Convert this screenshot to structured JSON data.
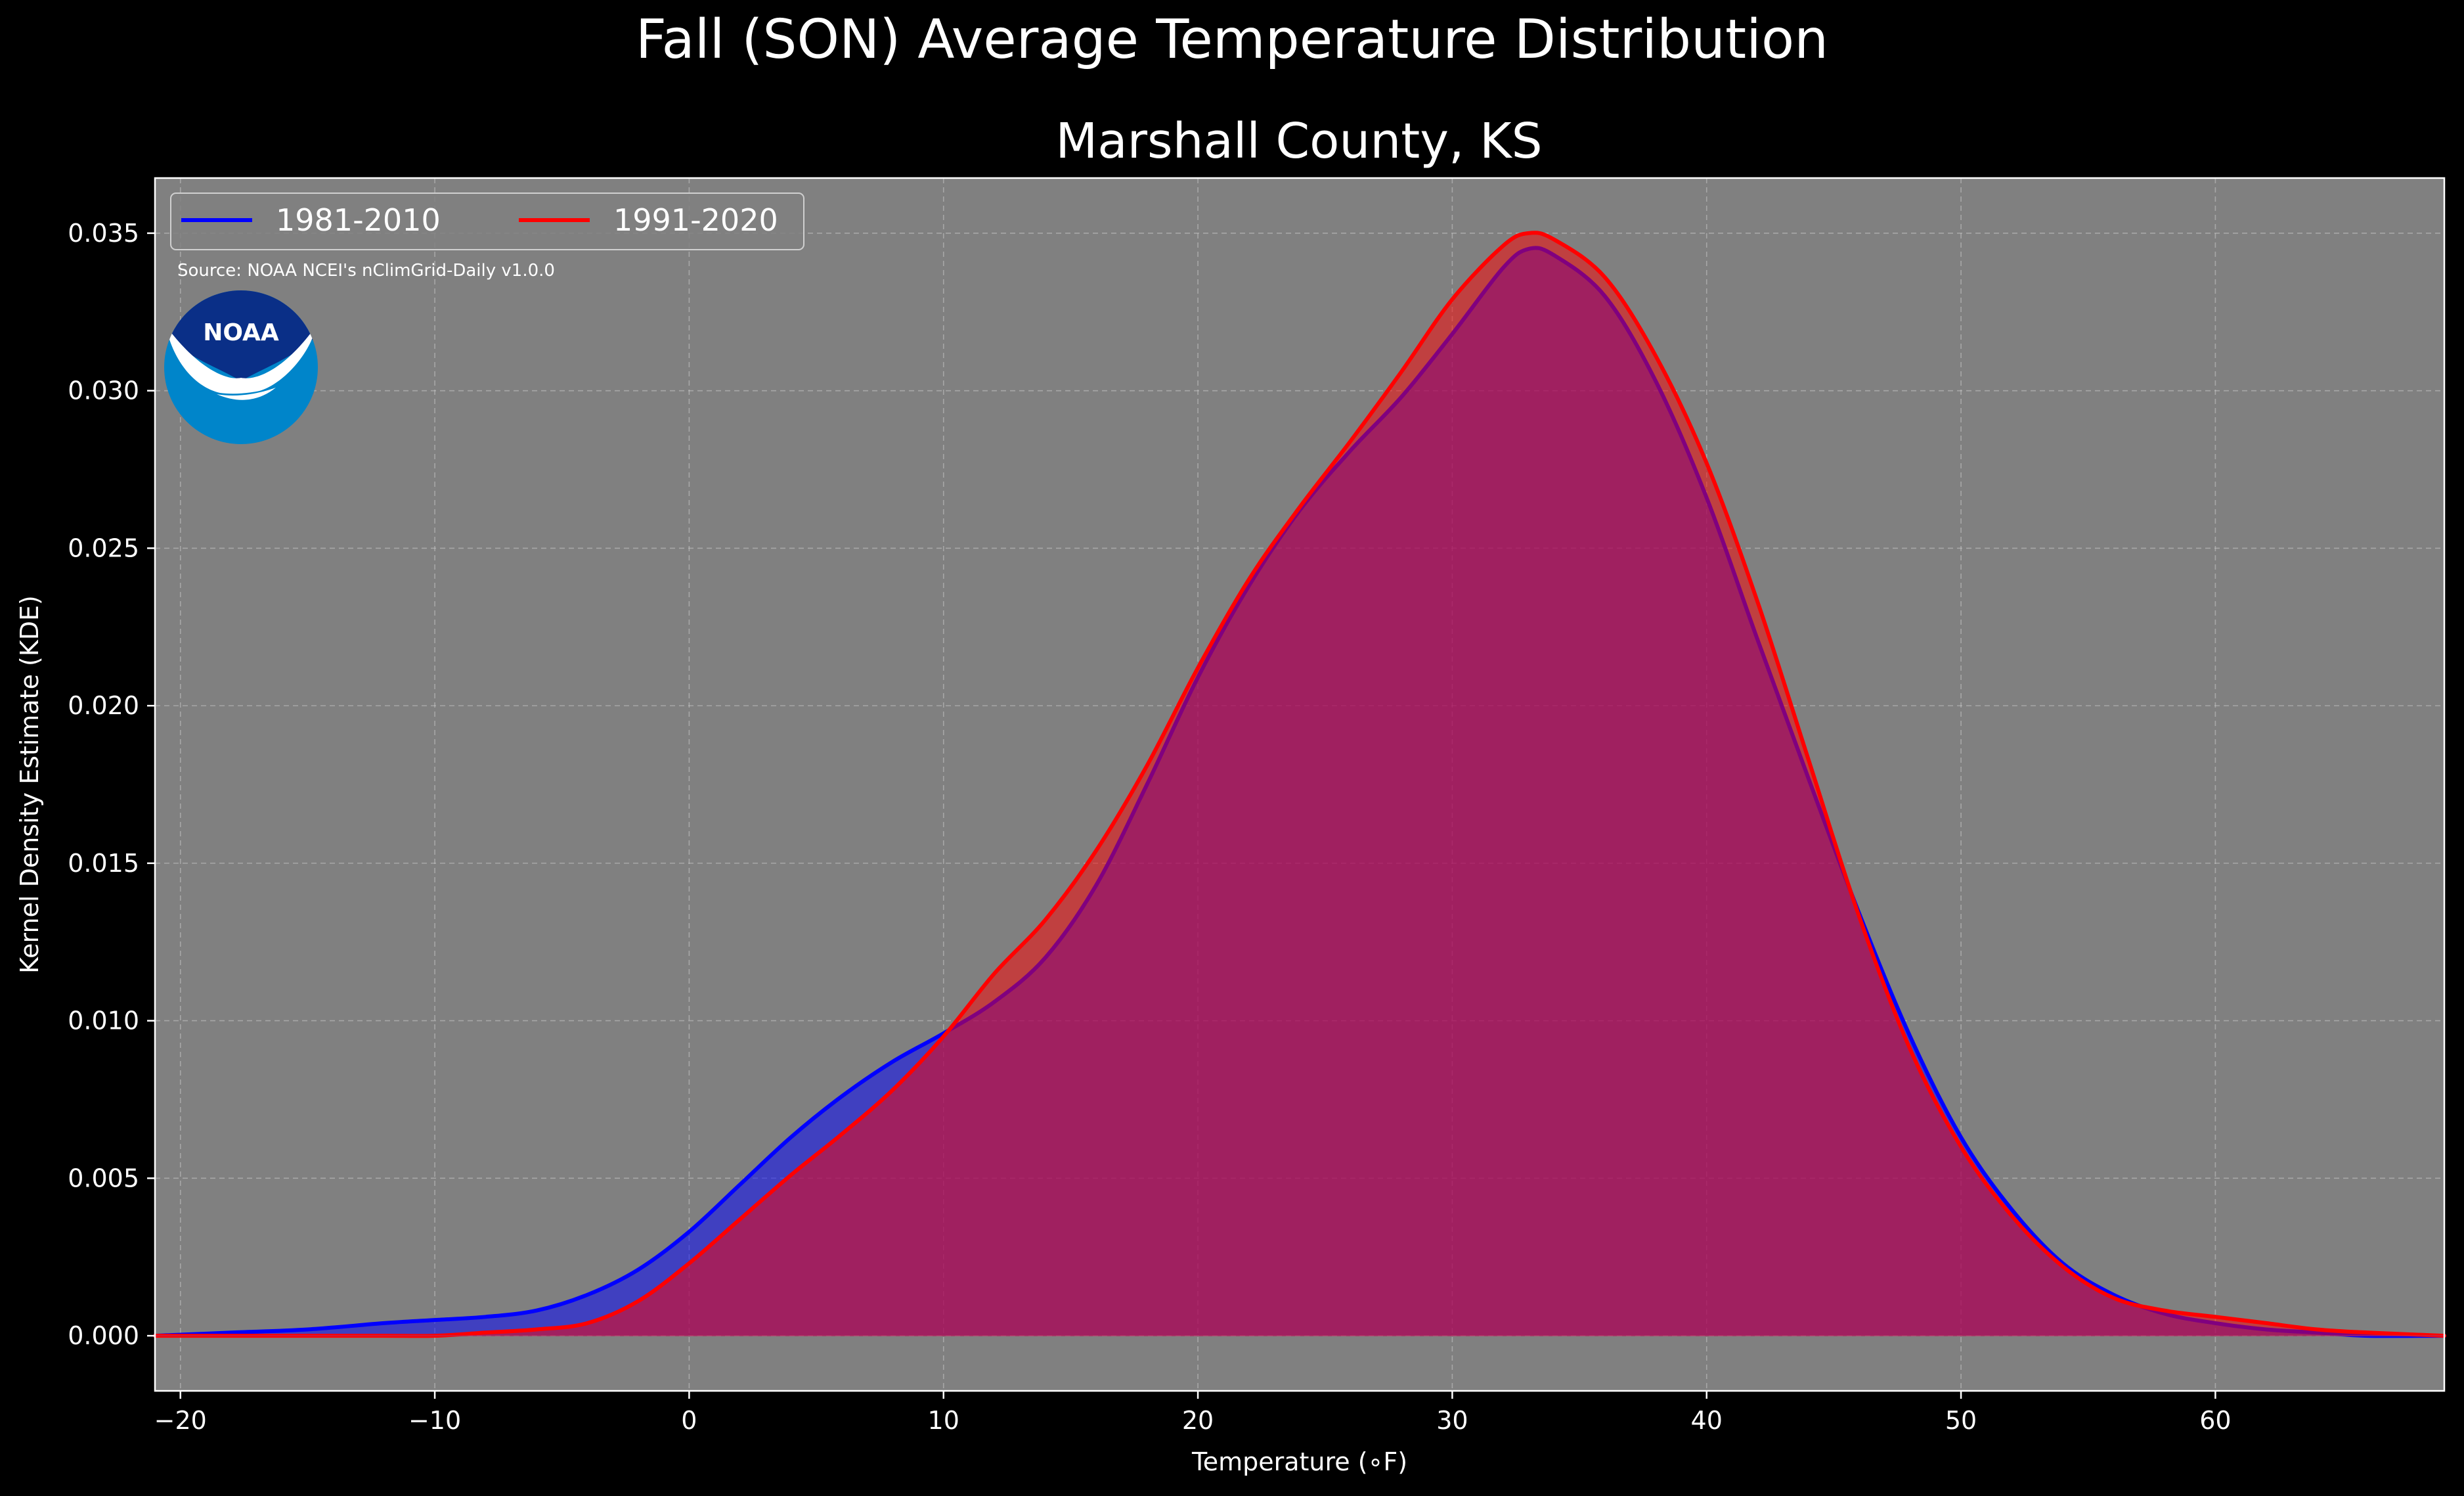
{
  "chart_data": {
    "type": "area",
    "title": "Fall (SON) Average Temperature Distribution",
    "subtitle": "Marshall County, KS",
    "xlabel": "Temperature (∘F)",
    "ylabel": "Kernel Density Estimate (KDE)",
    "xlim": [
      -21,
      69
    ],
    "ylim": [
      -0.00175,
      0.03675
    ],
    "xticks": [
      -20,
      -10,
      0,
      10,
      20,
      30,
      40,
      50,
      60
    ],
    "xtick_labels": [
      "−20",
      "−10",
      "0",
      "10",
      "20",
      "30",
      "40",
      "50",
      "60"
    ],
    "yticks": [
      0.0,
      0.005,
      0.01,
      0.015,
      0.02,
      0.025,
      0.03,
      0.035
    ],
    "ytick_labels": [
      "0.000",
      "0.005",
      "0.010",
      "0.015",
      "0.020",
      "0.025",
      "0.030",
      "0.035"
    ],
    "grid": true,
    "legend_position": "top-left",
    "source_text": "Source: NOAA NCEI's nClimGrid-Daily v1.0.0",
    "logo_text": "NOAA",
    "background_color": "#000000",
    "plot_background_color": "#808080",
    "series": [
      {
        "name": "1981-2010",
        "color": "#0000ff",
        "fill": "#0000ff",
        "x": [
          -21,
          -18,
          -15,
          -12,
          -10,
          -8,
          -6,
          -4,
          -2,
          0,
          2,
          4,
          6,
          8,
          10,
          12,
          14,
          16,
          18,
          20,
          22,
          24,
          26,
          28,
          30,
          32,
          33,
          34,
          36,
          38,
          40,
          42,
          44,
          46,
          48,
          50,
          52,
          54,
          56,
          58,
          60,
          62,
          64,
          66,
          69
        ],
        "values": [
          0.0,
          0.0001,
          0.0002,
          0.0004,
          0.0005,
          0.0006,
          0.0008,
          0.0013,
          0.0021,
          0.0033,
          0.0048,
          0.0063,
          0.0076,
          0.0087,
          0.0096,
          0.0106,
          0.012,
          0.0143,
          0.0175,
          0.0209,
          0.0238,
          0.0262,
          0.0281,
          0.0298,
          0.0318,
          0.0339,
          0.0345,
          0.0343,
          0.033,
          0.0303,
          0.0266,
          0.0221,
          0.0177,
          0.0134,
          0.0095,
          0.0063,
          0.004,
          0.0023,
          0.0013,
          0.0007,
          0.0004,
          0.0002,
          0.0001,
          0.0,
          0.0
        ]
      },
      {
        "name": "1991-2020",
        "color": "#ff0000",
        "fill": "#ff0000",
        "x": [
          -21,
          -18,
          -15,
          -12,
          -10,
          -8,
          -6,
          -4,
          -2,
          0,
          2,
          4,
          6,
          8,
          10,
          12,
          14,
          16,
          18,
          20,
          22,
          24,
          26,
          28,
          30,
          32,
          33,
          34,
          36,
          38,
          40,
          42,
          44,
          46,
          48,
          50,
          52,
          54,
          56,
          58,
          60,
          62,
          64,
          66,
          69
        ],
        "values": [
          0.0,
          0.0,
          0.0,
          0.0,
          0.0,
          0.0001,
          0.0002,
          0.0004,
          0.0011,
          0.0023,
          0.0037,
          0.0051,
          0.0064,
          0.0078,
          0.0095,
          0.0115,
          0.0132,
          0.0154,
          0.0181,
          0.0212,
          0.024,
          0.0263,
          0.0284,
          0.0306,
          0.0329,
          0.0346,
          0.035,
          0.0348,
          0.0336,
          0.0311,
          0.0277,
          0.0233,
          0.0183,
          0.0133,
          0.0091,
          0.006,
          0.0038,
          0.0022,
          0.0012,
          0.0008,
          0.0006,
          0.0004,
          0.0002,
          0.0001,
          0.0
        ]
      }
    ]
  }
}
